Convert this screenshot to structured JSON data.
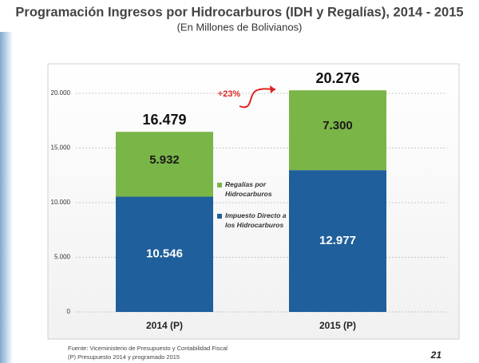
{
  "chart_data": {
    "type": "stacked_bar",
    "title": "Programación Ingresos por Hidrocarburos (IDH y Regalías), 2014 - 2015",
    "subtitle": "(En Millones de Bolivianos)",
    "annotation": "+23%",
    "categories": [
      "2014 (P)",
      "2015 (P)"
    ],
    "series": [
      {
        "name": "Impuesto Directo a los Hidrocarburos",
        "color": "#1f5f9b",
        "values": [
          10546,
          12977
        ],
        "value_labels": [
          "10.546",
          "12.977"
        ]
      },
      {
        "name": "Regalías por Hidrocarburos",
        "color": "#7ab547",
        "values": [
          5932,
          7300
        ],
        "value_labels": [
          "5.932",
          "7.300"
        ]
      }
    ],
    "totals": {
      "values": [
        16479,
        20276
      ],
      "value_labels": [
        "16.479",
        "20.276"
      ]
    },
    "ylim": [
      0,
      22000
    ],
    "yticks": [
      0,
      {
        "value": 5000,
        "label": "5.000"
      },
      {
        "value": 10000,
        "label": "10.000"
      },
      {
        "value": 15000,
        "label": "15.000"
      },
      {
        "value": 20000,
        "label": "20.000"
      }
    ],
    "grid": true
  },
  "footer": {
    "source": "Fuente: Viceministerio de Presupuesto y Contabilidad Fiscal",
    "note": "(P) Presupuesto 2014 y programado 2015",
    "page_number": "21"
  }
}
